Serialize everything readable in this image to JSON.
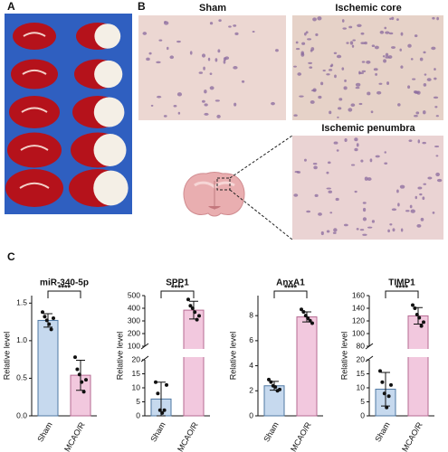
{
  "panel_labels": [
    "A",
    "B",
    "C"
  ],
  "image_titles": [
    "Sham",
    "Ischemic core",
    "Ischemic penumbra"
  ],
  "chart_data": [
    {
      "type": "bar",
      "title": "miR-340-5p",
      "ylabel": "Relative level",
      "annotation": "****",
      "categories": [
        "Sham",
        "MCAO/R"
      ],
      "values": [
        1.27,
        0.54
      ],
      "errors": [
        0.09,
        0.2
      ],
      "points": [
        [
          1.38,
          1.32,
          1.27,
          1.22,
          1.15,
          1.3
        ],
        [
          0.78,
          0.62,
          0.55,
          0.45,
          0.32,
          0.48
        ]
      ],
      "colors": [
        "#c6d9ee",
        "#f2c8de"
      ],
      "edge_colors": [
        "#4f78a3",
        "#b56a92"
      ],
      "axis_segments": [
        {
          "ylim": [
            0,
            1.6
          ],
          "yticks": [
            {
              "value": 0,
              "label": "0.0"
            },
            0.5,
            {
              "value": 1,
              "label": "1.0"
            },
            1.5
          ]
        }
      ]
    },
    {
      "type": "bar",
      "title": "SPP1",
      "ylabel": "Relative level",
      "annotation": "****",
      "categories": [
        "Sham",
        "MCAO/R"
      ],
      "values": [
        6,
        385
      ],
      "errors": [
        6,
        70
      ],
      "points": [
        [
          12,
          8,
          2,
          1,
          2,
          11
        ],
        [
          470,
          420,
          400,
          370,
          310,
          340
        ]
      ],
      "colors": [
        "#c6d9ee",
        "#f2c8de"
      ],
      "edge_colors": [
        "#4f78a3",
        "#b56a92"
      ],
      "axis_segments": [
        {
          "ylim": [
            0,
            20
          ],
          "yticks": [
            0,
            5,
            10,
            15,
            20
          ]
        },
        {
          "ylim": [
            100,
            500
          ],
          "yticks": [
            100,
            200,
            300,
            400,
            500
          ]
        }
      ]
    },
    {
      "type": "bar",
      "title": "AnxA1",
      "ylabel": "Relative level",
      "annotation": "****",
      "categories": [
        "Sham",
        "MCAO/R"
      ],
      "values": [
        2.4,
        7.9
      ],
      "errors": [
        0.35,
        0.4
      ],
      "points": [
        [
          2.9,
          2.7,
          2.4,
          2.3,
          2.0,
          2.1
        ],
        [
          8.5,
          8.3,
          8.0,
          7.8,
          7.6,
          7.4
        ]
      ],
      "colors": [
        "#c6d9ee",
        "#f2c8de"
      ],
      "edge_colors": [
        "#4f78a3",
        "#b56a92"
      ],
      "axis_segments": [
        {
          "ylim": [
            0,
            9.6
          ],
          "yticks": [
            0,
            2,
            4,
            6,
            8
          ]
        }
      ]
    },
    {
      "type": "bar",
      "title": "TIMP1",
      "ylabel": "Relative level",
      "annotation": "****",
      "categories": [
        "Sham",
        "MCAO/R"
      ],
      "values": [
        9.5,
        128
      ],
      "errors": [
        6,
        13
      ],
      "points": [
        [
          16,
          12,
          8,
          3,
          7,
          11
        ],
        [
          145,
          140,
          130,
          125,
          112,
          118
        ]
      ],
      "colors": [
        "#c6d9ee",
        "#f2c8de"
      ],
      "edge_colors": [
        "#4f78a3",
        "#b56a92"
      ],
      "axis_segments": [
        {
          "ylim": [
            0,
            20
          ],
          "yticks": [
            0,
            5,
            10,
            15,
            20
          ]
        },
        {
          "ylim": [
            80,
            160
          ],
          "yticks": [
            80,
            100,
            120,
            140,
            160
          ]
        }
      ]
    }
  ]
}
